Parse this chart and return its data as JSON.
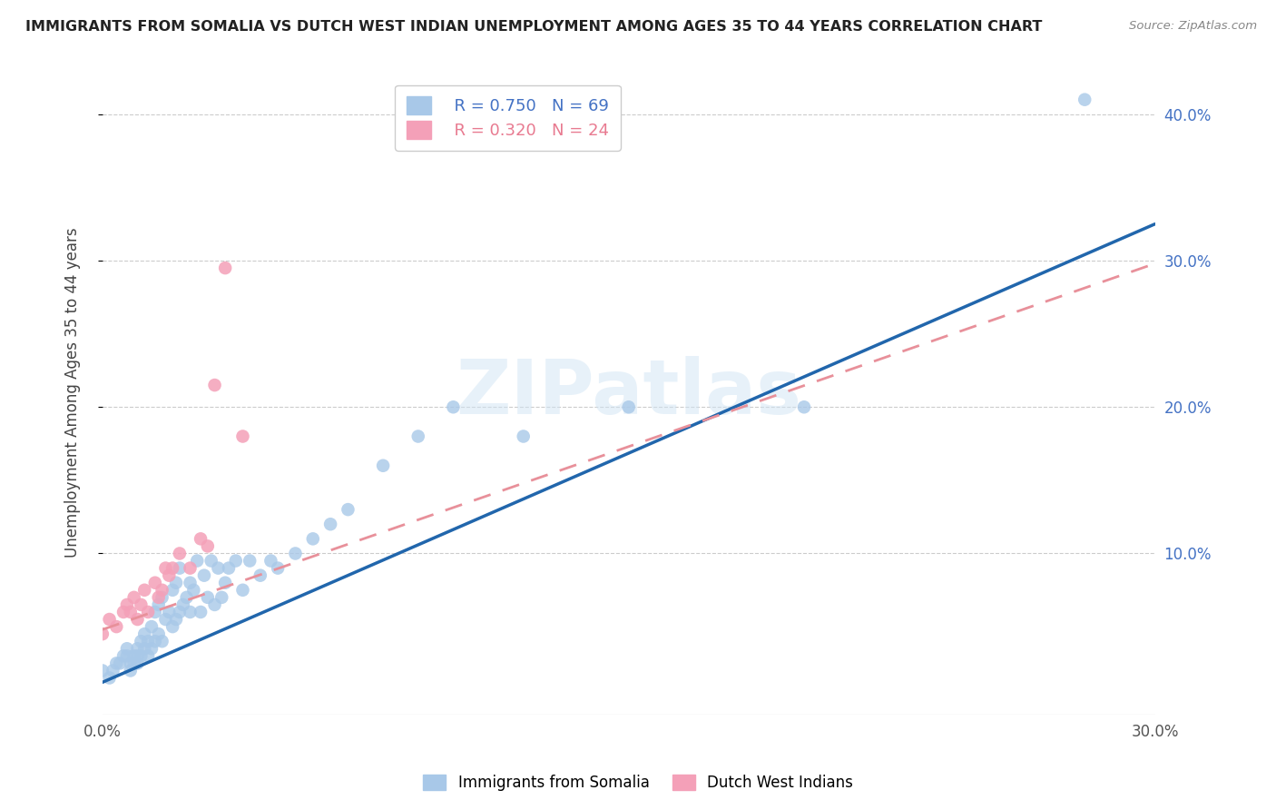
{
  "title": "IMMIGRANTS FROM SOMALIA VS DUTCH WEST INDIAN UNEMPLOYMENT AMONG AGES 35 TO 44 YEARS CORRELATION CHART",
  "source": "Source: ZipAtlas.com",
  "ylabel": "Unemployment Among Ages 35 to 44 years",
  "xlim": [
    0.0,
    0.3
  ],
  "ylim": [
    -0.01,
    0.43
  ],
  "xticks": [
    0.0,
    0.3
  ],
  "xticklabels": [
    "0.0%",
    "30.0%"
  ],
  "yticks_right": [
    0.1,
    0.2,
    0.3,
    0.4
  ],
  "yticklabels_right": [
    "10.0%",
    "20.0%",
    "30.0%",
    "40.0%"
  ],
  "grid_color": "#cccccc",
  "background_color": "#ffffff",
  "somalia_color": "#a8c8e8",
  "dwi_color": "#f4a0b8",
  "somalia_line_color": "#2166ac",
  "dwi_line_color": "#e8909a",
  "watermark": "ZIPatlas",
  "legend_somalia_R": "R = 0.750",
  "legend_somalia_N": "N = 69",
  "legend_dwi_R": "R = 0.320",
  "legend_dwi_N": "N = 24",
  "somalia_scatter_x": [
    0.0,
    0.002,
    0.003,
    0.004,
    0.005,
    0.006,
    0.007,
    0.007,
    0.008,
    0.008,
    0.009,
    0.009,
    0.01,
    0.01,
    0.01,
    0.011,
    0.011,
    0.012,
    0.012,
    0.013,
    0.013,
    0.014,
    0.014,
    0.015,
    0.015,
    0.016,
    0.016,
    0.017,
    0.017,
    0.018,
    0.019,
    0.02,
    0.02,
    0.021,
    0.021,
    0.022,
    0.022,
    0.023,
    0.024,
    0.025,
    0.025,
    0.026,
    0.027,
    0.028,
    0.029,
    0.03,
    0.031,
    0.032,
    0.033,
    0.034,
    0.035,
    0.036,
    0.038,
    0.04,
    0.042,
    0.045,
    0.048,
    0.05,
    0.055,
    0.06,
    0.065,
    0.07,
    0.08,
    0.09,
    0.1,
    0.12,
    0.15,
    0.2,
    0.28
  ],
  "somalia_scatter_y": [
    0.02,
    0.015,
    0.02,
    0.025,
    0.025,
    0.03,
    0.03,
    0.035,
    0.02,
    0.025,
    0.025,
    0.03,
    0.025,
    0.03,
    0.035,
    0.03,
    0.04,
    0.035,
    0.045,
    0.03,
    0.04,
    0.035,
    0.05,
    0.04,
    0.06,
    0.045,
    0.065,
    0.04,
    0.07,
    0.055,
    0.06,
    0.05,
    0.075,
    0.055,
    0.08,
    0.06,
    0.09,
    0.065,
    0.07,
    0.06,
    0.08,
    0.075,
    0.095,
    0.06,
    0.085,
    0.07,
    0.095,
    0.065,
    0.09,
    0.07,
    0.08,
    0.09,
    0.095,
    0.075,
    0.095,
    0.085,
    0.095,
    0.09,
    0.1,
    0.11,
    0.12,
    0.13,
    0.16,
    0.18,
    0.2,
    0.18,
    0.2,
    0.2,
    0.41
  ],
  "dwi_scatter_x": [
    0.0,
    0.002,
    0.004,
    0.006,
    0.007,
    0.008,
    0.009,
    0.01,
    0.011,
    0.012,
    0.013,
    0.015,
    0.016,
    0.017,
    0.018,
    0.019,
    0.02,
    0.022,
    0.025,
    0.028,
    0.03,
    0.032,
    0.035,
    0.04
  ],
  "dwi_scatter_y": [
    0.045,
    0.055,
    0.05,
    0.06,
    0.065,
    0.06,
    0.07,
    0.055,
    0.065,
    0.075,
    0.06,
    0.08,
    0.07,
    0.075,
    0.09,
    0.085,
    0.09,
    0.1,
    0.09,
    0.11,
    0.105,
    0.215,
    0.295,
    0.18
  ],
  "somalia_line_x": [
    0.0,
    0.3
  ],
  "somalia_line_y": [
    0.012,
    0.325
  ],
  "dwi_line_x": [
    0.0,
    0.3
  ],
  "dwi_line_y": [
    0.048,
    0.298
  ]
}
